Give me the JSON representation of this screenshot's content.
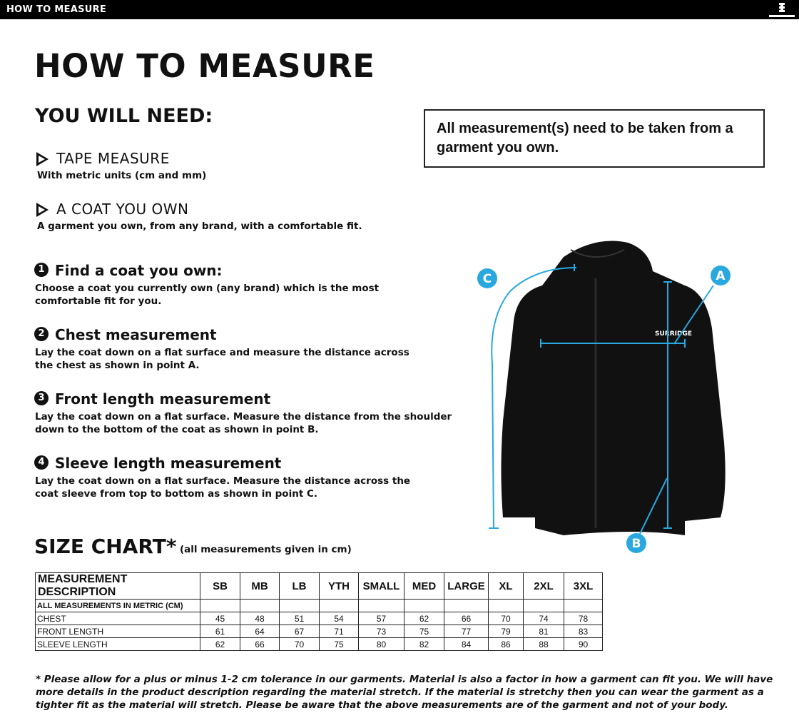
{
  "topbar": {
    "title": "HOW TO MEASURE",
    "logo_text": "SURRIDGE"
  },
  "title": "HOW TO MEASURE",
  "you_will_need": {
    "heading": "YOU WILL NEED:",
    "items": [
      {
        "label": "TAPE MEASURE",
        "desc": "With metric units (cm and mm)"
      },
      {
        "label": "A COAT YOU OWN",
        "desc": "A garment you own, from any brand, with a comfortable fit."
      }
    ]
  },
  "note": "All measurement(s) need to be taken from a garment you own.",
  "steps": [
    {
      "num": "1",
      "title": "Find a coat you own:",
      "desc": "Choose a coat you currently own (any brand) which is the most comfortable fit for you."
    },
    {
      "num": "2",
      "title": "Chest measurement",
      "desc": "Lay the coat down on a flat surface and measure the distance across the chest as shown in point A."
    },
    {
      "num": "3",
      "title": "Front length measurement",
      "desc": "Lay the coat down on a flat surface. Measure the distance from the shoulder down to the bottom of the coat as shown in point B."
    },
    {
      "num": "4",
      "title": "Sleeve length measurement",
      "desc": "Lay the coat down on a flat surface. Measure the distance across the coat sleeve from top to bottom as shown in point C."
    }
  ],
  "diagram": {
    "points": {
      "a": "A",
      "b": "B",
      "c": "C"
    },
    "accent": "#29a8e0",
    "jacket_logo": "SURRIDGE"
  },
  "size_chart": {
    "title": "SIZE CHART*",
    "subtitle": "(all measurements given in cm)",
    "header": "MEASUREMENT DESCRIPTION",
    "sizes": [
      "SB",
      "MB",
      "LB",
      "YTH",
      "SMALL",
      "MED",
      "LARGE",
      "XL",
      "2XL",
      "3XL"
    ],
    "subheader": "ALL MEASUREMENTS IN METRIC (CM)",
    "rows": [
      {
        "label": "CHEST",
        "values": [
          "45",
          "48",
          "51",
          "54",
          "57",
          "62",
          "66",
          "70",
          "74",
          "78"
        ]
      },
      {
        "label": "FRONT LENGTH",
        "values": [
          "61",
          "64",
          "67",
          "71",
          "73",
          "75",
          "77",
          "79",
          "81",
          "83"
        ]
      },
      {
        "label": "SLEEVE LENGTH",
        "values": [
          "62",
          "66",
          "70",
          "75",
          "80",
          "82",
          "84",
          "86",
          "88",
          "90"
        ]
      }
    ]
  },
  "footnote": "* Please allow for a plus or minus 1-2 cm tolerance in our garments. Material is also a factor in how a garment can fit you. We will have more details in the product description regarding the material stretch.  If the material is stretchy then you can wear the garment as a tighter fit as the material will stretch.  Please be aware that the above measurements are of the garment and not of your body."
}
